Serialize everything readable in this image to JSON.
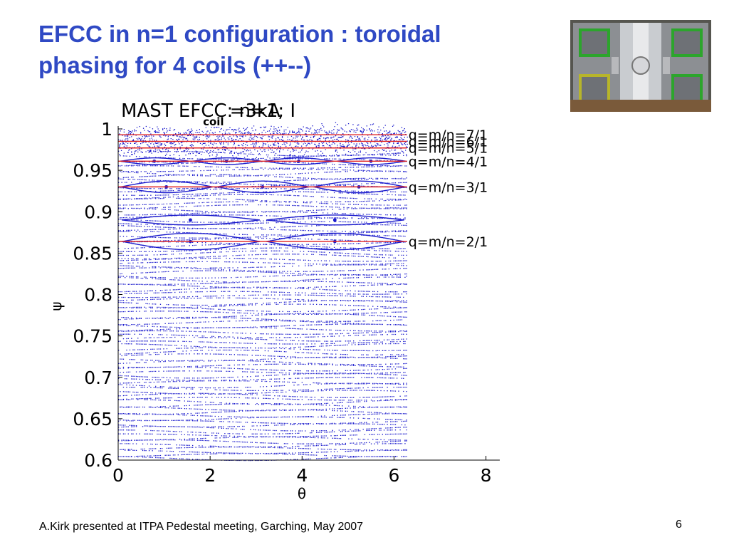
{
  "slide": {
    "title_line1": "EFCC in n=1 configuration : toroidal",
    "title_line2": "phasing for 4 coils (++--)",
    "footer": "A.Kirk presented at ITPA Pedestal meeting, Garching, May 2007",
    "page_number": "6",
    "photo_description_icon": "tokamak-vessel-photo-icon"
  },
  "colors": {
    "title": "#2f49c4",
    "poincare_points": "#1a1acc",
    "resonant_lines": "#e02020",
    "axis": "#000000"
  },
  "chart_data": {
    "type": "scatter",
    "title_main": "MAST EFCC: n=1; I",
    "title_subscript": "coil",
    "title_tail": "=3kA",
    "xlabel": "θ",
    "ylabel": "ψ",
    "xlim": [
      0,
      8.3
    ],
    "ylim": [
      0.6,
      1.0
    ],
    "x_ticks": [
      0,
      2,
      4,
      6,
      8
    ],
    "x_tick_labels": [
      "0",
      "2",
      "4",
      "6",
      "8"
    ],
    "y_ticks": [
      0.6,
      0.65,
      0.7,
      0.75,
      0.8,
      0.85,
      0.9,
      0.95,
      1.0
    ],
    "y_tick_labels": [
      "0.6",
      "0.65",
      "0.7",
      "0.75",
      "0.8",
      "0.85",
      "0.9",
      "0.95",
      "1"
    ],
    "data_x_range": [
      0,
      6.283
    ],
    "resonant_surfaces": [
      {
        "label": "q=m/n=7/1",
        "psi": 0.993
      },
      {
        "label": "q=m/n=6/1",
        "psi": 0.985
      },
      {
        "label": "q=m/n=5/1",
        "psi": 0.977
      },
      {
        "label": "q=m/n=4/1",
        "psi": 0.961
      },
      {
        "label": "q=m/n=3/1",
        "psi": 0.93
      },
      {
        "label": "q=m/n=2/1",
        "psi": 0.864
      }
    ],
    "islands": [
      {
        "psi": 0.93,
        "m": 3,
        "half_width": 0.007
      },
      {
        "psi": 0.961,
        "m": 4,
        "half_width": 0.004
      },
      {
        "psi": 0.864,
        "m": 2,
        "half_width": 0.01
      },
      {
        "psi": 0.89,
        "m": 2,
        "half_width": 0.006
      }
    ],
    "surface_band": [
      0.6,
      1.0
    ],
    "surface_count": 100,
    "stochastic_region_above": 0.972
  }
}
